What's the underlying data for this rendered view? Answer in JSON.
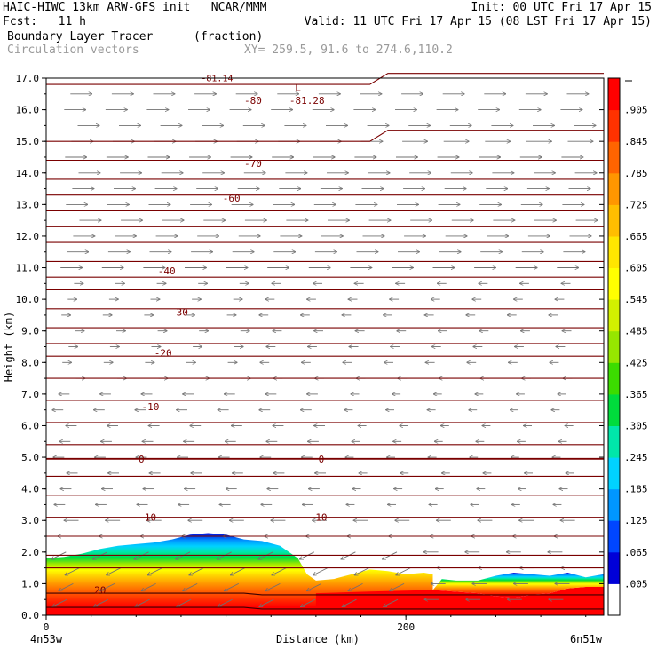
{
  "header": {
    "line1_left": "HAIC-HIWC 13km ARW-GFS init   NCAR/MMM",
    "line1_right": "Init: 00 UTC Fri 17 Apr 15",
    "fcst": "Fcst:   11 h",
    "valid": "Valid: 11 UTC Fri 17 Apr 15 (08 LST Fri 17 Apr 15)",
    "field1": "Boundary Layer Tracer",
    "field1_units": "(fraction)",
    "field2": "Circulation vectors",
    "xy": "XY= 259.5, 91.6 to 274.6,110.2"
  },
  "chart_data": {
    "type": "heatmap",
    "ylabel": "Height (km)",
    "xlabel": "Distance (km)",
    "x_left_label": "4n53w",
    "x_right_label": "6n51w",
    "xlim": [
      0,
      310
    ],
    "ylim": [
      0,
      17
    ],
    "x_ticks": [
      0,
      200
    ],
    "y_ticks": [
      "0.0",
      "1.0",
      "2.0",
      "3.0",
      "4.0",
      "5.0",
      "6.0",
      "7.0",
      "8.0",
      "9.0",
      "10.0",
      "11.0",
      "12.0",
      "13.0",
      "14.0",
      "15.0",
      "16.0",
      "17.0"
    ],
    "colorbar": {
      "labels": [
        ".005",
        ".065",
        ".125",
        ".185",
        ".245",
        ".305",
        ".365",
        ".425",
        ".485",
        ".545",
        ".605",
        ".665",
        ".725",
        ".785",
        ".845",
        ".905"
      ],
      "colors": [
        "#ffffff",
        "#0000d8",
        "#0046ff",
        "#0096ff",
        "#00d2ff",
        "#00e6aa",
        "#00dc3c",
        "#3cdc00",
        "#96e600",
        "#d2f000",
        "#ffff00",
        "#ffe600",
        "#ffbe00",
        "#ff9600",
        "#ff6400",
        "#ff3200",
        "#ff0000"
      ]
    },
    "isotherm_labels": [
      {
        "label": "-80",
        "x": 115,
        "y": 16.3
      },
      {
        "label": "-81.28",
        "x": 145,
        "y": 16.3
      },
      {
        "label": "L",
        "x": 140,
        "y": 16.7
      },
      {
        "label": "-70",
        "x": 115,
        "y": 14.3
      },
      {
        "label": "-60",
        "x": 103,
        "y": 13.2
      },
      {
        "label": "-40",
        "x": 67,
        "y": 10.9
      },
      {
        "label": "-30",
        "x": 74,
        "y": 9.6
      },
      {
        "label": "-20",
        "x": 65,
        "y": 8.3
      },
      {
        "label": "-10",
        "x": 58,
        "y": 6.6
      },
      {
        "label": "0",
        "x": 53,
        "y": 4.95
      },
      {
        "label": "0",
        "x": 153,
        "y": 4.95
      },
      {
        "label": "10",
        "x": 58,
        "y": 3.1
      },
      {
        "label": "10",
        "x": 153,
        "y": 3.1
      },
      {
        "label": "20",
        "x": 30,
        "y": 0.8
      }
    ],
    "isotherm_top_label": "-81.14",
    "isotherm_levels_km": [
      16.8,
      15.0,
      14.4,
      13.8,
      13.3,
      12.8,
      12.3,
      11.8,
      11.2,
      10.7,
      10.3,
      9.7,
      9.1,
      8.6,
      8.2,
      7.5,
      6.8,
      6.1,
      5.4,
      4.95,
      4.4,
      3.8,
      3.1,
      2.5,
      1.9,
      1.5,
      0.7,
      0.25
    ],
    "tracer_top_km": [
      [
        0,
        1.8
      ],
      [
        10,
        1.85
      ],
      [
        20,
        1.95
      ],
      [
        30,
        2.1
      ],
      [
        40,
        2.2
      ],
      [
        50,
        2.25
      ],
      [
        60,
        2.3
      ],
      [
        70,
        2.4
      ],
      [
        80,
        2.55
      ],
      [
        90,
        2.6
      ],
      [
        100,
        2.55
      ],
      [
        110,
        2.4
      ],
      [
        120,
        2.35
      ],
      [
        130,
        2.2
      ],
      [
        140,
        1.8
      ],
      [
        145,
        1.3
      ],
      [
        150,
        1.1
      ],
      [
        160,
        1.15
      ],
      [
        170,
        1.3
      ],
      [
        180,
        1.45
      ],
      [
        190,
        1.4
      ],
      [
        200,
        1.3
      ],
      [
        210,
        1.35
      ],
      [
        215,
        1.3
      ]
    ],
    "wind_vectors": "dense grid of circulation vectors, mostly westward near surface and eastward aloft"
  }
}
